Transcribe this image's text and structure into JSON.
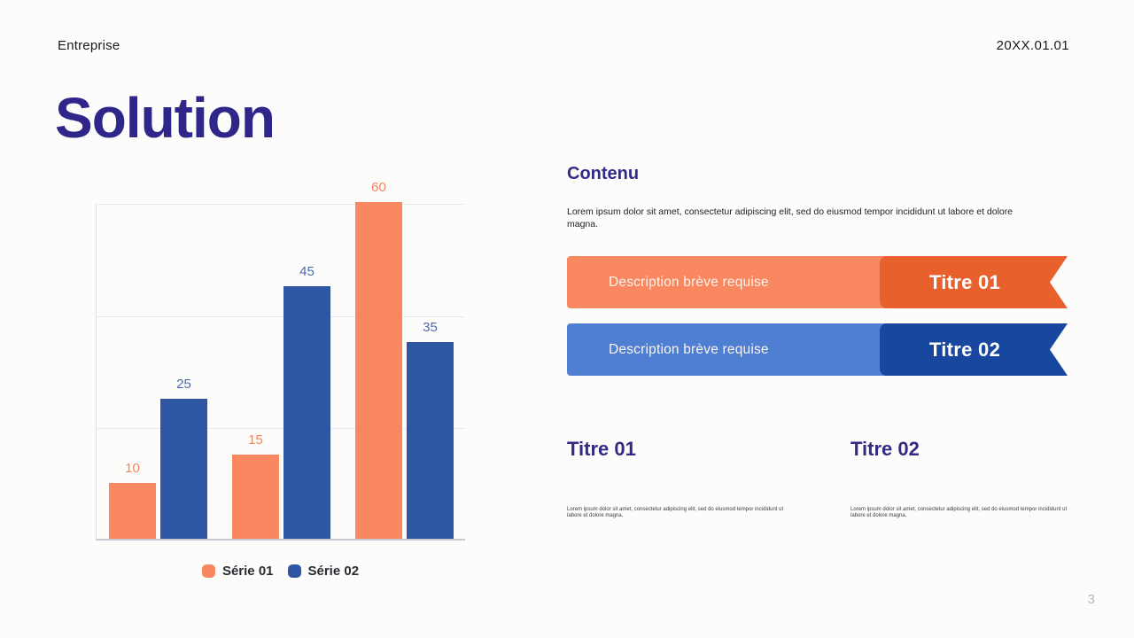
{
  "header": {
    "company": "Entreprise",
    "date": "20XX.01.01"
  },
  "title": "Solution",
  "page_number": "3",
  "content": {
    "heading": "Contenu",
    "body": "Lorem ipsum dolor sit amet, consectetur adipiscing elit, sed do eiusmod tempor incididunt ut labore et dolore magna."
  },
  "banners": [
    {
      "description": "Description brève requise",
      "title": "Titre 01",
      "light_color": "#F9875F",
      "dark_color": "#E8612C"
    },
    {
      "description": "Description brève requise",
      "title": "Titre 02",
      "light_color": "#4E7FD2",
      "dark_color": "#17479E"
    }
  ],
  "sections": [
    {
      "title": "Titre 01",
      "body": "Lorem ipsum dolor sit amet, consectetur adipiscing elit, sed do eiusmod tempor incididunt ut labore et dolore magna."
    },
    {
      "title": "Titre 02",
      "body": "Lorem ipsum dolor sit amet, consectetur adipiscing elit, sed do eiusmod tempor incididunt ut labore et dolore magna."
    }
  ],
  "chart_data": {
    "type": "bar",
    "categories": [
      "",
      "",
      ""
    ],
    "series": [
      {
        "name": "Série 01",
        "values": [
          10,
          15,
          60
        ],
        "color": "#F9875F",
        "label_color": "#F4845F"
      },
      {
        "name": "Série 02",
        "values": [
          25,
          45,
          35
        ],
        "color": "#2F55A5",
        "label_color": "#4A69B2"
      }
    ],
    "ylim": [
      0,
      60
    ],
    "gridline_values": [
      20,
      40,
      60
    ],
    "data_labels": true,
    "legend_position": "bottom",
    "title": "",
    "xlabel": "",
    "ylabel": ""
  }
}
